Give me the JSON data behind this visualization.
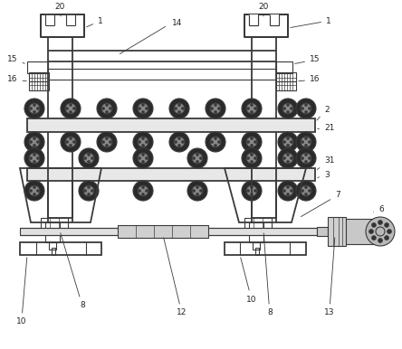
{
  "bg_color": "#ffffff",
  "lc": "#3a3a3a",
  "lw": 0.8,
  "tlw": 1.3,
  "fs": 6.5,
  "fc": "#222222",
  "fig_w": 4.44,
  "fig_h": 3.86
}
